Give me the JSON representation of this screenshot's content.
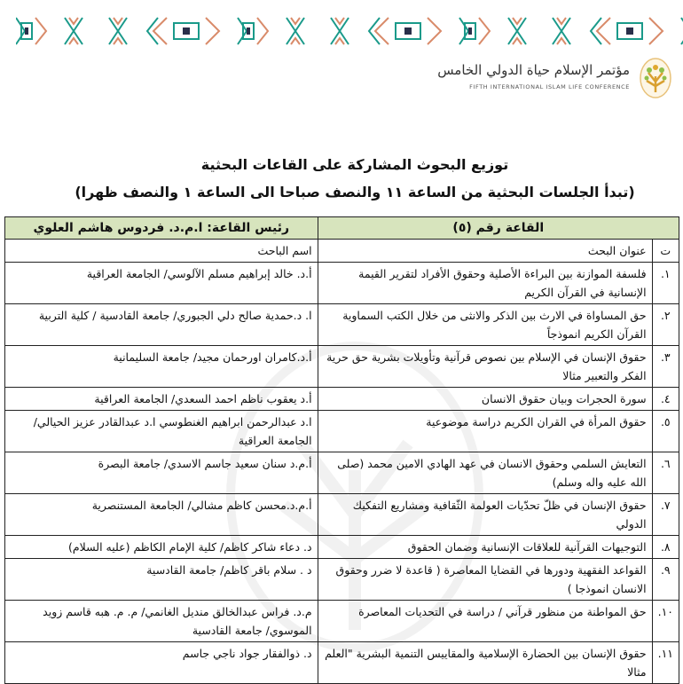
{
  "header": {
    "logo_arabic": "مؤتمر الإسلام حياة الدولي الخامس",
    "logo_english": "FIFTH INTERNATIONAL ISLAM LIFE CONFERENCE",
    "colors": {
      "teal": "#1a9a8a",
      "orange": "#d98b6a",
      "navy": "#2a2f4a",
      "gold": "#e0a830",
      "header_green": "#d7e4bd"
    }
  },
  "document": {
    "title": "توزيع البحوث المشاركة على القاعات البحثية",
    "subtitle": "(تبدأ الجلسات البحثية من الساعة ١١ والنصف صباحا الى الساعة ١ والنصف ظهرا)"
  },
  "table": {
    "hall": "القاعة رقم (٥)",
    "chair": "رئيس القاعة: ا.م.د. فردوس هاشم العلوي",
    "col_num": "ت",
    "col_title": "عنوان البحث",
    "col_name": "اسم الباحث",
    "rows": [
      {
        "num": "١.",
        "title": "فلسفة الموازنة بين البراءة الأصلية وحقوق الأفراد لتقرير القيمة الإنسانية في القرآن الكريم",
        "name": "أ.د. خالد إبراهيم مسلم الآلوسي/ الجامعة العراقية"
      },
      {
        "num": "٢.",
        "title": "حق المساواة في الارث بين الذكر والانثى من خلال الكتب السماوية القرآن الكريم انموذجاً",
        "name": "ا. د.حمدية صالح  دلي الجبوري/ جامعة القادسية / كلية التربية"
      },
      {
        "num": "٣.",
        "title": "حقوق الإنسان في الإسلام بين نصوص قرآنية وتأويلات بشرية حق حرية الفكر والتعبير مثالا",
        "name": "أ.د.كامران اورحمان مجيد/ جامعة السليمانية"
      },
      {
        "num": "٤.",
        "title": "سورة الحجرات وبيان حقوق الانسان",
        "name": "أ.د يعقوب ناظم احمد السعدي/ الجامعة العراقية"
      },
      {
        "num": "٥.",
        "title": "حقوق المرأة في القران الكريم دراسة موضوعية",
        "name": "ا.د عبدالرحمن ابراهيم الغنطوسي   ا.د عبدالقادر عزيز الحيالي/ الجامعة العراقية"
      },
      {
        "num": "٦.",
        "title": "التعايش السلمي  وحقوق الانسان في عهد الهادي الامين محمد (صلى الله عليه واله وسلم)",
        "name": "أ.م.د سنان سعيد جاسم  الاسدي/ جامعة البصرة"
      },
      {
        "num": "٧.",
        "title": "حقوق الإنسان في ظلّ تحدّيات العولمة الثّقافية ومشاريع التفكيك الدولي",
        "name": "أ.م.د.محسن كاظم مشالي/ الجامعة المستنصرية"
      },
      {
        "num": "٨.",
        "title": "التوجيهات القرآنية للعلاقات الإنسانية وضمان الحقوق",
        "name": "د. دعاء شاكر كاظم/ كلية الإمام الكاظم (عليه السلام)"
      },
      {
        "num": "٩.",
        "title": "القواعد الفقهية ودورها في القضايا المعاصرة ( قاعدة لا ضرر وحقوق الانسان انموذجا )",
        "name": "د . سلام باقر كاظم/ جامعة القادسية"
      },
      {
        "num": "١٠.",
        "title": "حق المواطنة من منظور قرآني / دراسة في التحديات المعاصرة",
        "name": "م.د. فراس عبدالخالق منديل الغانمي/ م. م. هبه قاسم زويد الموسوي/ جامعة القادسية"
      },
      {
        "num": "١١.",
        "title": "حقوق الإنسان بين الحضارة الإسلامية والمقاييس التنمية البشرية \"العلم مثالا",
        "name": "د. ذوالفقار جواد ناجي جاسم"
      }
    ]
  }
}
